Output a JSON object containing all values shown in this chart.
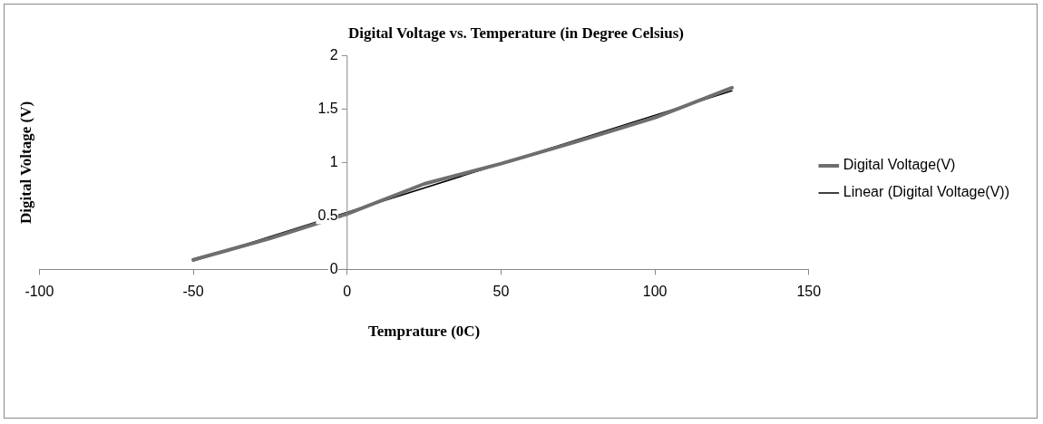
{
  "chart_data": {
    "type": "line",
    "title": "Digital Voltage vs. Temperature (in Degree Celsius)",
    "xlabel": "Temprature (0C)",
    "ylabel": "Digital Voltage (V)",
    "xlim": [
      -100,
      150
    ],
    "xticks": [
      -100,
      -50,
      0,
      50,
      100,
      150
    ],
    "ylim": [
      0,
      2
    ],
    "yticks": [
      0,
      0.5,
      1,
      1.5,
      2
    ],
    "grid": false,
    "legend": "right",
    "marker": "none",
    "series": [
      {
        "name": "Digital Voltage(V)",
        "color": "#6e6e6e",
        "x": [
          -50,
          -25,
          0,
          25,
          50,
          75,
          100,
          125
        ],
        "values": [
          0.09,
          0.29,
          0.52,
          0.8,
          0.99,
          1.2,
          1.42,
          1.7
        ]
      },
      {
        "name": "Linear (Digital Voltage(V))",
        "color": "#000000",
        "x": [
          -50,
          125
        ],
        "values": [
          0.08,
          1.67
        ]
      }
    ]
  }
}
